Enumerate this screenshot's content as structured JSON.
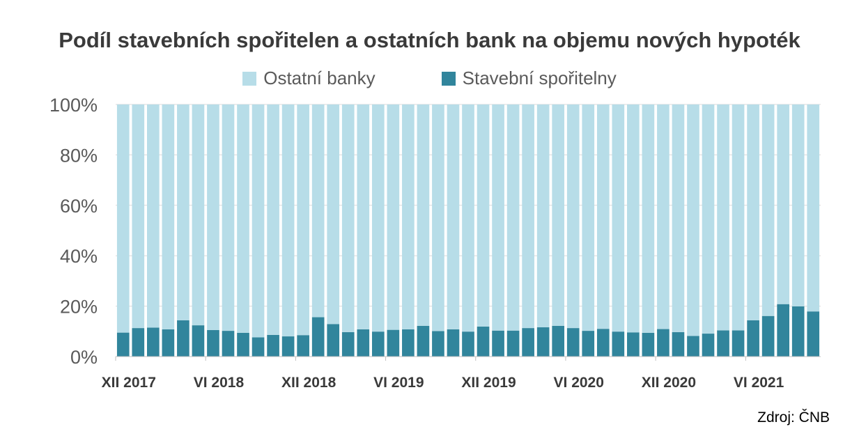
{
  "chart_data": {
    "type": "bar",
    "stacked": true,
    "percent": true,
    "title": "Podíl stavebních spořitelen a ostatních bank na objemu nových hypoték",
    "ylim": [
      0,
      100
    ],
    "yticks": [
      "0%",
      "20%",
      "40%",
      "60%",
      "80%",
      "100%"
    ],
    "xtick_labels": [
      {
        "index": 0,
        "label": "XII 2017"
      },
      {
        "index": 6,
        "label": "VI 2018"
      },
      {
        "index": 12,
        "label": "XII 2018"
      },
      {
        "index": 18,
        "label": "VI 2019"
      },
      {
        "index": 24,
        "label": "XII 2019"
      },
      {
        "index": 30,
        "label": "VI 2020"
      },
      {
        "index": 36,
        "label": "XII 2020"
      },
      {
        "index": 42,
        "label": "VI 2021"
      }
    ],
    "grid": true,
    "legend_position": "top",
    "series": [
      {
        "name": "Ostatní banky",
        "color": "#b7dde8",
        "values": [
          90.5,
          88.7,
          88.5,
          89.2,
          85.6,
          87.6,
          89.5,
          89.8,
          90.6,
          92.4,
          91.4,
          92.0,
          91.5,
          84.4,
          87.1,
          90.3,
          89.2,
          90.1,
          89.4,
          89.2,
          87.8,
          89.9,
          89.2,
          90.1,
          88.1,
          89.7,
          89.7,
          88.7,
          88.4,
          87.8,
          88.7,
          89.8,
          89.0,
          90.1,
          90.4,
          90.6,
          89.1,
          90.3,
          91.8,
          90.9,
          89.6,
          89.6,
          85.6,
          83.9,
          79.2,
          80.1,
          82.1
        ]
      },
      {
        "name": "Stavební spořitelny",
        "color": "#31859c",
        "values": [
          9.5,
          11.3,
          11.5,
          10.8,
          14.4,
          12.4,
          10.5,
          10.2,
          9.4,
          7.6,
          8.6,
          8.0,
          8.5,
          15.6,
          12.9,
          9.7,
          10.8,
          9.9,
          10.6,
          10.8,
          12.2,
          10.1,
          10.8,
          9.9,
          11.9,
          10.3,
          10.3,
          11.3,
          11.6,
          12.2,
          11.3,
          10.2,
          11.0,
          9.9,
          9.6,
          9.4,
          10.9,
          9.7,
          8.2,
          9.1,
          10.4,
          10.4,
          14.4,
          16.1,
          20.8,
          19.9,
          17.9
        ]
      }
    ]
  },
  "source": "Zdroj: ČNB"
}
